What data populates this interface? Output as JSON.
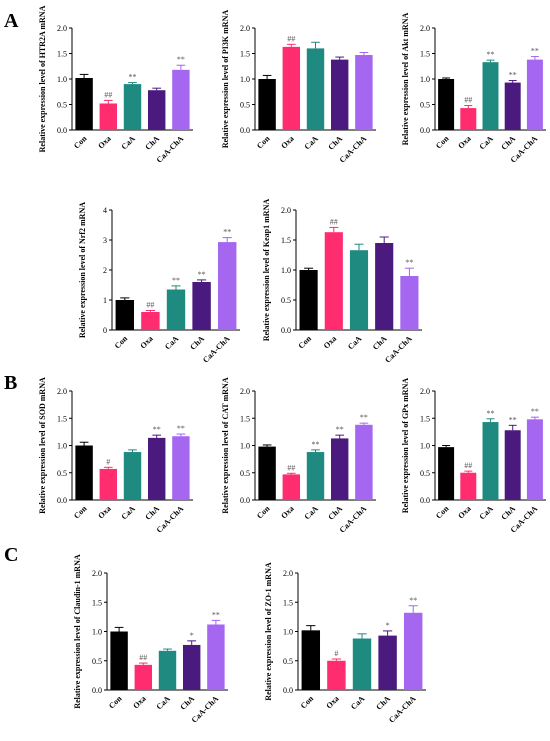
{
  "panel_labels": [
    "A",
    "B",
    "C"
  ],
  "colors": {
    "Con": "#000000",
    "Oxa": "#ff2d6f",
    "CaA": "#1e8a80",
    "ChA": "#4a1a7e",
    "CaA-ChA": "#a566f0"
  },
  "chart_data": [
    {
      "type": "bar",
      "panel": "A",
      "ylabel": "Relative expression level of HTR2A mRNA",
      "ylim": [
        0,
        2.0
      ],
      "yticks": [
        "0.0",
        "0.5",
        "1.0",
        "1.5",
        "2.0"
      ],
      "categories": [
        "Con",
        "Oxa",
        "CaA",
        "ChA",
        "CaA-ChA"
      ],
      "values": [
        1.02,
        0.52,
        0.9,
        0.78,
        1.18
      ],
      "errors": [
        0.07,
        0.06,
        0.03,
        0.04,
        0.09
      ],
      "annotations": [
        "",
        "##",
        "**",
        "",
        "**"
      ]
    },
    {
      "type": "bar",
      "panel": "A",
      "ylabel": "Relative expression level of PI3K mRNA",
      "ylim": [
        0,
        2.0
      ],
      "yticks": [
        "0.0",
        "0.5",
        "1.0",
        "1.5",
        "2.0"
      ],
      "categories": [
        "Con",
        "Oxa",
        "CaA",
        "ChA",
        "CaA-ChA"
      ],
      "values": [
        1.0,
        1.63,
        1.6,
        1.38,
        1.47
      ],
      "errors": [
        0.07,
        0.05,
        0.12,
        0.05,
        0.05
      ],
      "annotations": [
        "",
        "##",
        "",
        "",
        ""
      ]
    },
    {
      "type": "bar",
      "panel": "A",
      "ylabel": "Relative expression level of Akt mRNA",
      "ylim": [
        0,
        2.0
      ],
      "yticks": [
        "0.0",
        "0.5",
        "1.0",
        "1.5",
        "2.0"
      ],
      "categories": [
        "Con",
        "Oxa",
        "CaA",
        "ChA",
        "CaA-ChA"
      ],
      "values": [
        1.0,
        0.43,
        1.33,
        0.93,
        1.38
      ],
      "errors": [
        0.02,
        0.05,
        0.04,
        0.04,
        0.06
      ],
      "annotations": [
        "",
        "##",
        "**",
        "**",
        "**"
      ]
    },
    {
      "type": "bar",
      "panel": "A",
      "ylabel": "Relative expression level of Nrf2 mRNA",
      "ylim": [
        0,
        4
      ],
      "yticks": [
        "0",
        "1",
        "2",
        "3",
        "4"
      ],
      "categories": [
        "Con",
        "Oxa",
        "CaA",
        "ChA",
        "CaA-ChA"
      ],
      "values": [
        1.0,
        0.6,
        1.35,
        1.6,
        2.93
      ],
      "errors": [
        0.07,
        0.05,
        0.12,
        0.07,
        0.15
      ],
      "annotations": [
        "",
        "##",
        "**",
        "**",
        "**"
      ]
    },
    {
      "type": "bar",
      "panel": "A",
      "ylabel": "Relative expression level of Keap1 mRNA",
      "ylim": [
        0,
        2.0
      ],
      "yticks": [
        "0.0",
        "0.5",
        "1.0",
        "1.5",
        "2.0"
      ],
      "categories": [
        "Con",
        "Oxa",
        "CaA",
        "ChA",
        "CaA-ChA"
      ],
      "values": [
        1.0,
        1.63,
        1.33,
        1.45,
        0.9
      ],
      "errors": [
        0.03,
        0.08,
        0.1,
        0.1,
        0.13
      ],
      "annotations": [
        "",
        "##",
        "",
        "",
        "**"
      ]
    },
    {
      "type": "bar",
      "panel": "B",
      "ylabel": "Relative expression level of SOD mRNA",
      "ylim": [
        0,
        2.0
      ],
      "yticks": [
        "0.0",
        "0.5",
        "1.0",
        "1.5",
        "2.0"
      ],
      "categories": [
        "Con",
        "Oxa",
        "CaA",
        "ChA",
        "CaA-ChA"
      ],
      "values": [
        1.0,
        0.57,
        0.88,
        1.14,
        1.17
      ],
      "errors": [
        0.06,
        0.03,
        0.04,
        0.05,
        0.04
      ],
      "annotations": [
        "",
        "#",
        "",
        "**",
        "**"
      ]
    },
    {
      "type": "bar",
      "panel": "B",
      "ylabel": "Relative expression level of CAT mRNA",
      "ylim": [
        0,
        2.0
      ],
      "yticks": [
        "0.0",
        "0.5",
        "1.0",
        "1.5",
        "2.0"
      ],
      "categories": [
        "Con",
        "Oxa",
        "CaA",
        "ChA",
        "CaA-ChA"
      ],
      "values": [
        0.98,
        0.47,
        0.88,
        1.13,
        1.38
      ],
      "errors": [
        0.03,
        0.02,
        0.04,
        0.06,
        0.03
      ],
      "annotations": [
        "",
        "##",
        "**",
        "**",
        "**"
      ]
    },
    {
      "type": "bar",
      "panel": "B",
      "ylabel": "Relative expression level of GPx mRNA",
      "ylim": [
        0,
        2.0
      ],
      "yticks": [
        "0.0",
        "0.5",
        "1.0",
        "1.5",
        "2.0"
      ],
      "categories": [
        "Con",
        "Oxa",
        "CaA",
        "ChA",
        "CaA-ChA"
      ],
      "values": [
        0.97,
        0.5,
        1.43,
        1.28,
        1.48
      ],
      "errors": [
        0.03,
        0.03,
        0.06,
        0.09,
        0.04
      ],
      "annotations": [
        "",
        "##",
        "**",
        "**",
        "**"
      ]
    },
    {
      "type": "bar",
      "panel": "C",
      "ylabel": "Relative expression level of Claudin-1 mRNA",
      "ylim": [
        0,
        2.0
      ],
      "yticks": [
        "0.0",
        "0.5",
        "1.0",
        "1.5",
        "2.0"
      ],
      "categories": [
        "Con",
        "Oxa",
        "CaA",
        "ChA",
        "CaA-ChA"
      ],
      "values": [
        1.0,
        0.43,
        0.67,
        0.77,
        1.12
      ],
      "errors": [
        0.07,
        0.03,
        0.03,
        0.07,
        0.07
      ],
      "annotations": [
        "",
        "##",
        "",
        "*",
        "**"
      ]
    },
    {
      "type": "bar",
      "panel": "C",
      "ylabel": "Relative expression level of ZO-1 mRNA",
      "ylim": [
        0,
        2.0
      ],
      "yticks": [
        "0.0",
        "0.5",
        "1.0",
        "1.5",
        "2.0"
      ],
      "categories": [
        "Con",
        "Oxa",
        "CaA",
        "ChA",
        "CaA-ChA"
      ],
      "values": [
        1.02,
        0.5,
        0.88,
        0.93,
        1.32
      ],
      "errors": [
        0.08,
        0.03,
        0.08,
        0.08,
        0.12
      ],
      "annotations": [
        "",
        "#",
        "",
        "*",
        "**"
      ]
    }
  ]
}
